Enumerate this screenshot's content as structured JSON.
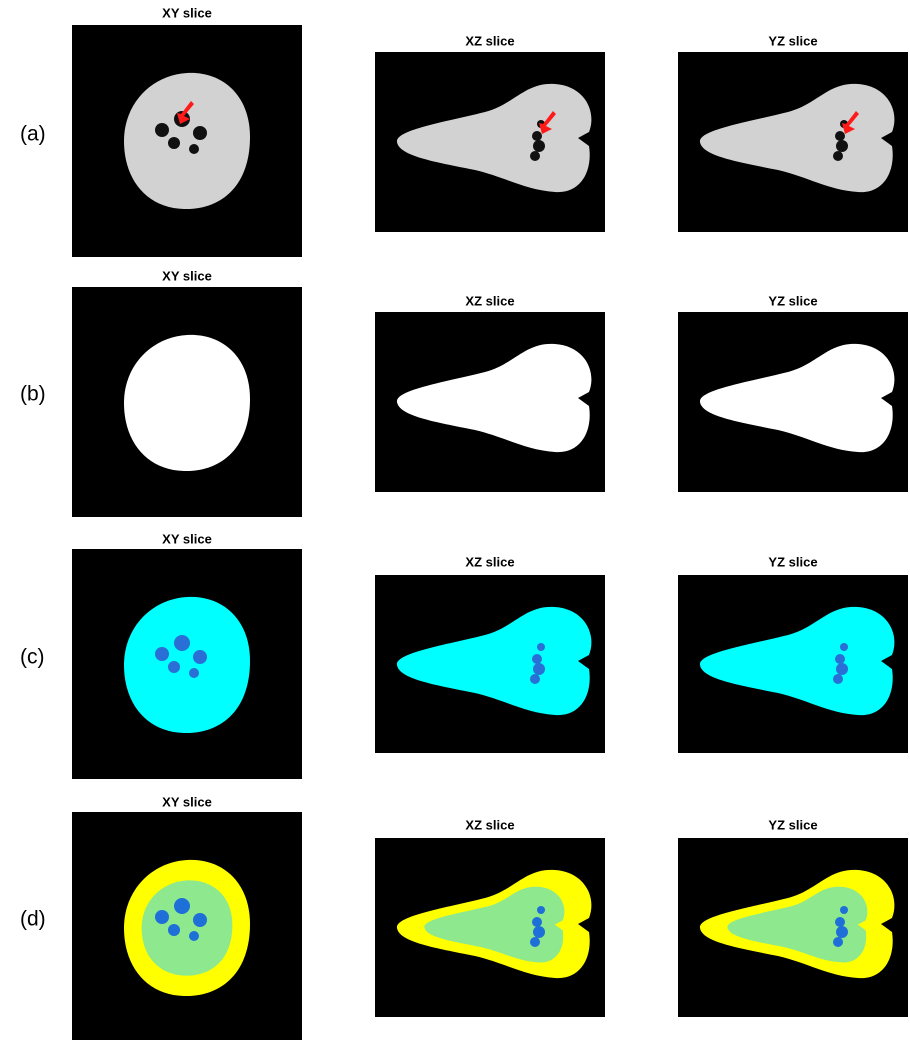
{
  "rows": [
    {
      "label": "(a)",
      "panels": [
        {
          "title": "XY slice"
        },
        {
          "title": "XZ slice"
        },
        {
          "title": "YZ slice"
        }
      ]
    },
    {
      "label": "(b)",
      "panels": [
        {
          "title": "XY slice"
        },
        {
          "title": "XZ slice"
        },
        {
          "title": "YZ slice"
        }
      ]
    },
    {
      "label": "(c)",
      "panels": [
        {
          "title": "XY slice"
        },
        {
          "title": "XZ slice"
        },
        {
          "title": "YZ slice"
        }
      ]
    },
    {
      "label": "(d)",
      "panels": [
        {
          "title": "XY slice"
        },
        {
          "title": "XZ slice"
        },
        {
          "title": "YZ slice"
        }
      ]
    }
  ]
}
